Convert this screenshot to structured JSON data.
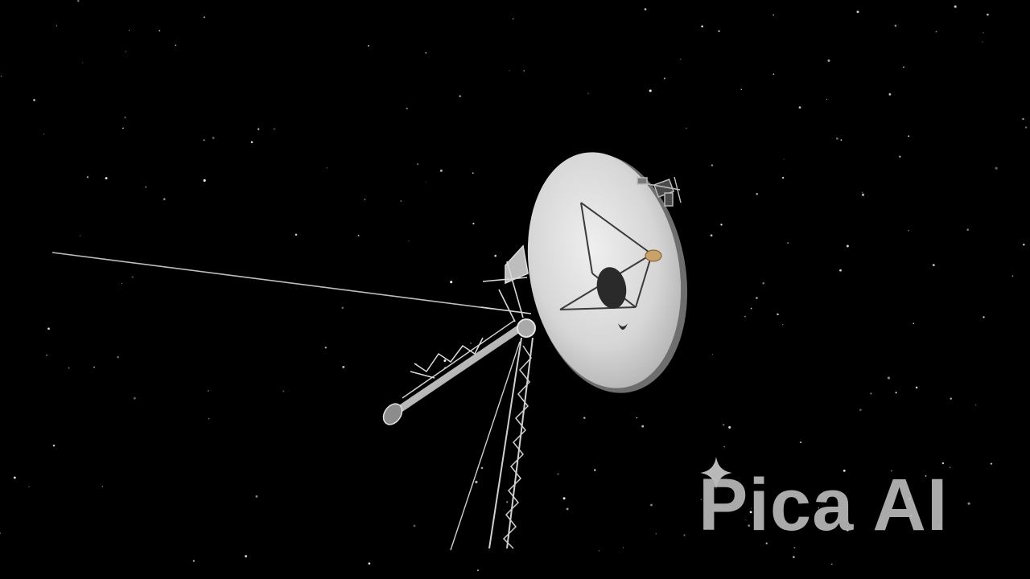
{
  "scene": {
    "subject": "spacecraft-probe",
    "background": "starfield",
    "colors": {
      "space": "#000000",
      "dish": "#dcdcdc",
      "dish_shadow": "#9a9a9a",
      "structure": "#cfcfcf",
      "stars": "#ffffff"
    }
  },
  "watermark": {
    "text": "Pica AI",
    "color": "#b9b9b9",
    "icon": "sparkle-icon"
  }
}
